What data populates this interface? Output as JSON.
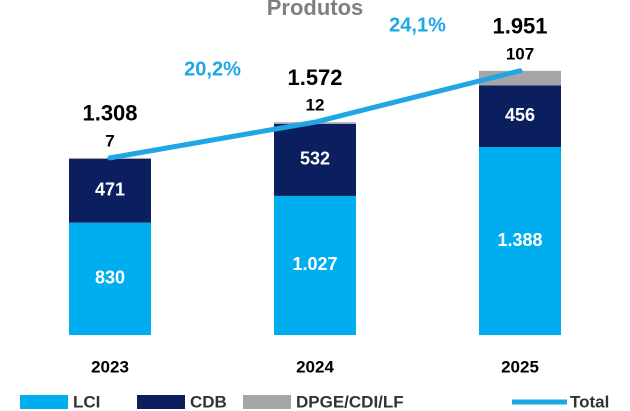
{
  "chart_data": {
    "type": "stacked_bar_line",
    "title": "Produtos",
    "categories": [
      "2023",
      "2024",
      "2025"
    ],
    "series": [
      {
        "name": "LCI",
        "color": "#00aeef",
        "values": [
          830,
          1027,
          1388
        ],
        "value_labels": [
          "830",
          "1.027",
          "1.388"
        ]
      },
      {
        "name": "CDB",
        "color": "#0b1f5e",
        "values": [
          471,
          532,
          456
        ]
      },
      {
        "name": "DPGE/CDI/LF",
        "color": "#a6a6a6",
        "values": [
          7,
          12,
          107
        ]
      },
      {
        "name": "Total",
        "color": "#1ea7e4",
        "type": "line",
        "values": [
          1308,
          1572,
          1951
        ],
        "value_labels": [
          "1.308",
          "1.572",
          "1.951"
        ]
      }
    ],
    "annotations": [
      "20,2%",
      "24,1%"
    ],
    "ylim": [
      0,
      2400
    ],
    "legend": "bottom"
  }
}
